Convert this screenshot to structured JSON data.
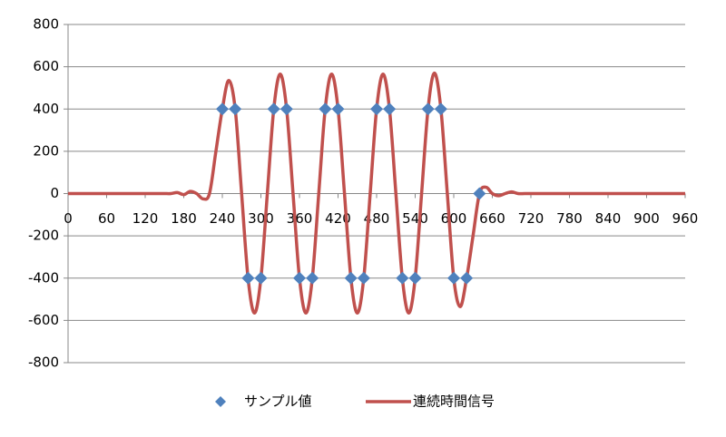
{
  "chart_data": {
    "type": "scatter",
    "xlim": [
      0,
      960
    ],
    "xticks": [
      0,
      60,
      120,
      180,
      240,
      300,
      360,
      420,
      480,
      540,
      600,
      660,
      720,
      780,
      840,
      900,
      960
    ],
    "ylim": [
      -800,
      800
    ],
    "yticks": [
      -800,
      -600,
      -400,
      -200,
      0,
      200,
      400,
      600,
      800
    ],
    "grid": true,
    "legend": "bottom",
    "series": [
      {
        "name": "サンプル値",
        "type": "scatter",
        "color": "#4f81bd",
        "x": [
          240,
          260,
          280,
          300,
          320,
          340,
          360,
          380,
          400,
          420,
          440,
          460,
          480,
          500,
          520,
          540,
          560,
          580,
          600,
          620,
          640
        ],
        "values": [
          400,
          400,
          -400,
          -400,
          400,
          400,
          -400,
          -400,
          400,
          400,
          -400,
          -400,
          400,
          400,
          -400,
          -400,
          400,
          400,
          -400,
          -400,
          0
        ]
      },
      {
        "name": "連続時間信号",
        "type": "line",
        "color": "#c0504d",
        "x": [
          0,
          10,
          20,
          30,
          40,
          50,
          60,
          70,
          80,
          90,
          100,
          110,
          120,
          130,
          140,
          150,
          160,
          170,
          180,
          190,
          200,
          210,
          220,
          230,
          240,
          250,
          260,
          270,
          280,
          290,
          300,
          310,
          320,
          330,
          340,
          350,
          360,
          370,
          380,
          390,
          400,
          410,
          420,
          430,
          440,
          450,
          460,
          470,
          480,
          490,
          500,
          510,
          520,
          530,
          540,
          550,
          560,
          570,
          580,
          590,
          600,
          610,
          620,
          630,
          640,
          650,
          660,
          670,
          680,
          690,
          700,
          710,
          720,
          730,
          740,
          750,
          760,
          770,
          780,
          790,
          800,
          810,
          820,
          830,
          840,
          850,
          860,
          870,
          880,
          890,
          900,
          910,
          920,
          930,
          940,
          950,
          960
        ],
        "values": [
          0,
          0,
          0,
          0,
          0,
          0,
          0,
          0,
          0,
          0,
          0,
          0,
          0,
          0,
          0,
          0,
          0,
          5,
          -5,
          10,
          0,
          -25,
          0,
          200,
          400,
          535,
          400,
          0,
          -400,
          -565,
          -400,
          0,
          400,
          565,
          400,
          0,
          -400,
          -565,
          -400,
          0,
          400,
          565,
          400,
          0,
          -400,
          -565,
          -400,
          0,
          400,
          565,
          400,
          0,
          -400,
          -565,
          -400,
          0,
          400,
          570,
          400,
          0,
          -400,
          -535,
          -400,
          -200,
          0,
          30,
          0,
          -10,
          0,
          8,
          0,
          0,
          0,
          0,
          0,
          0,
          0,
          0,
          0,
          0,
          0,
          0,
          0,
          0,
          0,
          0,
          0,
          0,
          0,
          0,
          0,
          0,
          0,
          0,
          0,
          0,
          0
        ]
      }
    ]
  }
}
